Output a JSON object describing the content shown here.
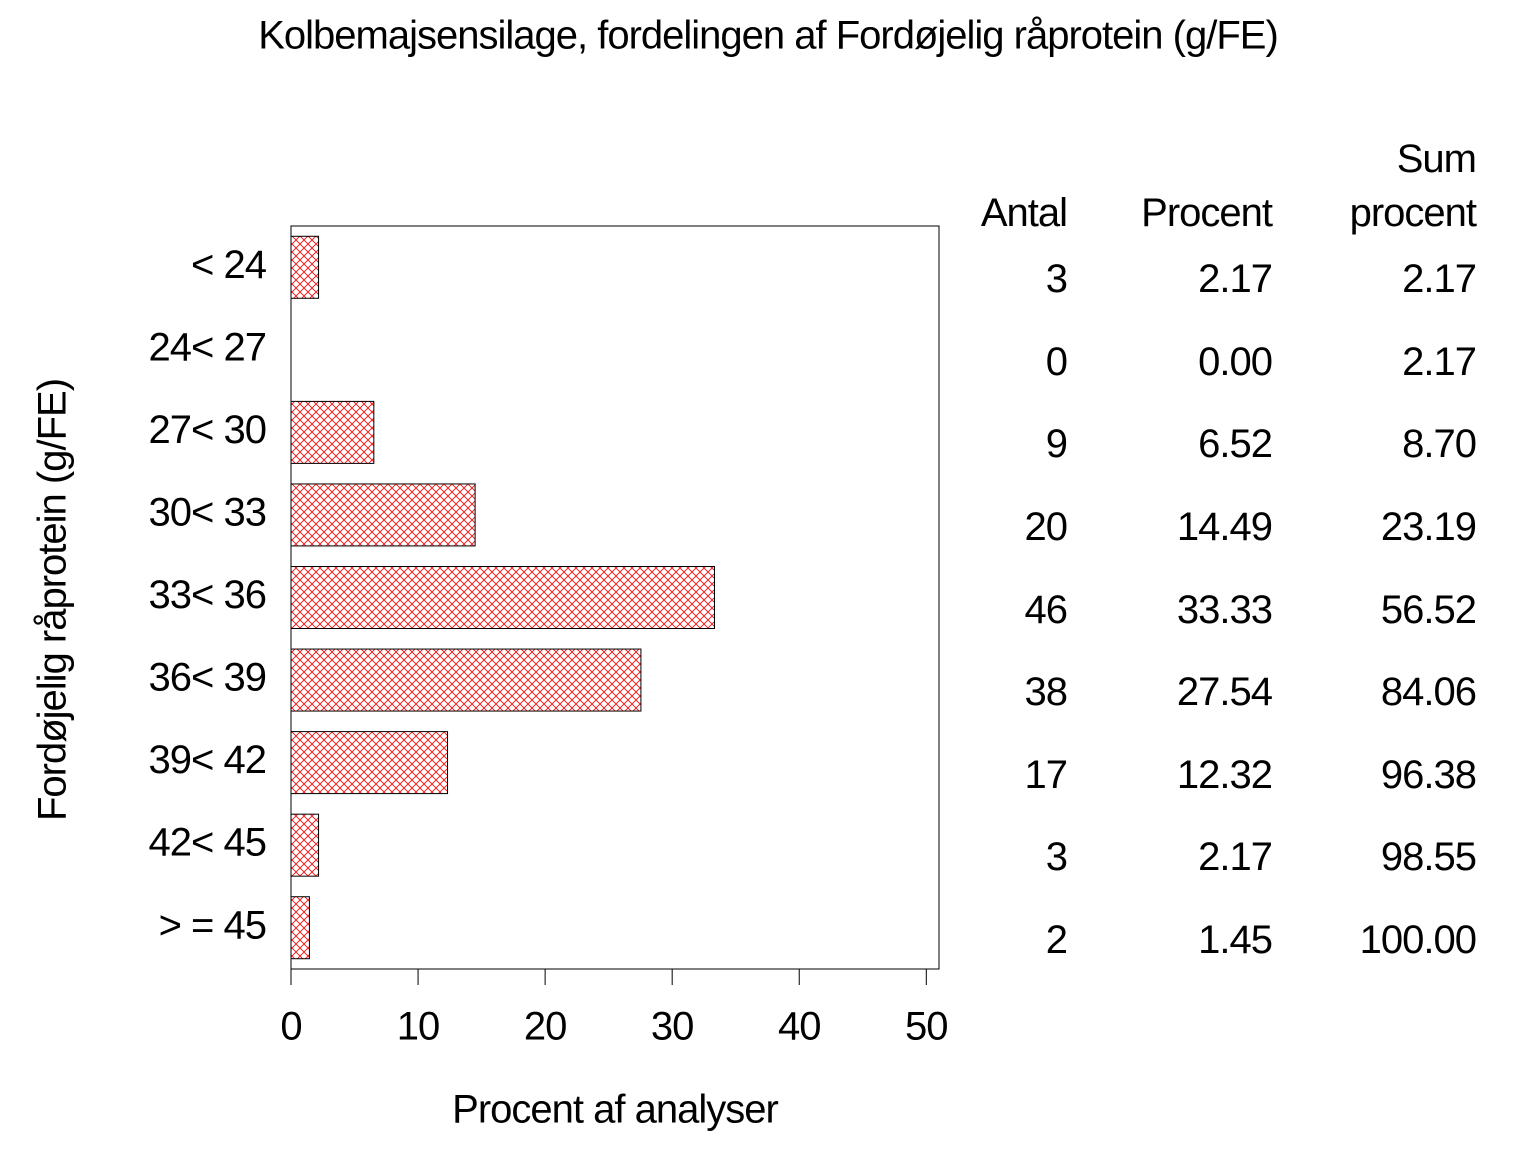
{
  "chart_data": {
    "type": "barh",
    "title": "Kolbemajsensilage, fordelingen af Fordøjelig råprotein (g/FE)",
    "x_label": "Procent af analyser",
    "y_label": "Fordøjelig råprotein (g/FE)",
    "categories": [
      "< 24",
      "24< 27",
      "27< 30",
      "30< 33",
      "33< 36",
      "36< 39",
      "39< 42",
      "42< 45",
      "> = 45"
    ],
    "values": [
      2.17,
      0,
      6.52,
      14.49,
      33.33,
      27.54,
      12.32,
      2.17,
      1.45
    ],
    "value_labels": [
      "2.17",
      "0.00",
      "6.52",
      "14.49",
      "33.33",
      "27.54",
      "12.32",
      "2.17",
      "1.45"
    ],
    "color": "#ff0000",
    "xlim": [
      0,
      51
    ],
    "xticks": [
      0,
      10,
      20,
      30,
      40,
      50
    ],
    "grid": false,
    "table_headers": [
      "Antal",
      "Procent",
      "Sum procent"
    ],
    "counts": [
      3,
      0,
      9,
      20,
      46,
      38,
      17,
      3,
      2
    ],
    "cumulative_labels": [
      "2.17",
      "2.17",
      "8.70",
      "23.19",
      "56.52",
      "84.06",
      "96.38",
      "98.55",
      "100.00"
    ]
  }
}
